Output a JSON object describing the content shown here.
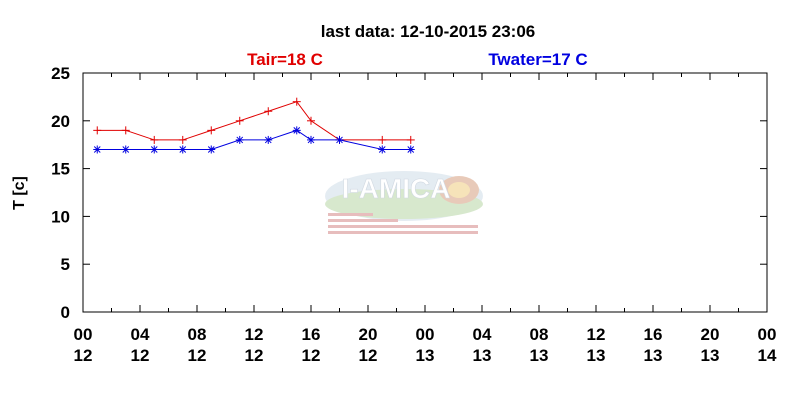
{
  "chart_data": {
    "type": "line",
    "title": "last data: 12-10-2015 23:06",
    "ylabel": "T [c]",
    "xlabel": "",
    "ylim": [
      0,
      25
    ],
    "yticks": [
      0,
      5,
      10,
      15,
      20,
      25
    ],
    "xlim_hours": [
      0,
      48
    ],
    "xticks": [
      {
        "h": 0,
        "line1": "00",
        "line2": "12"
      },
      {
        "h": 4,
        "line1": "04",
        "line2": "12"
      },
      {
        "h": 8,
        "line1": "08",
        "line2": "12"
      },
      {
        "h": 12,
        "line1": "12",
        "line2": "12"
      },
      {
        "h": 16,
        "line1": "16",
        "line2": "12"
      },
      {
        "h": 20,
        "line1": "20",
        "line2": "12"
      },
      {
        "h": 24,
        "line1": "00",
        "line2": "13"
      },
      {
        "h": 28,
        "line1": "04",
        "line2": "13"
      },
      {
        "h": 32,
        "line1": "08",
        "line2": "13"
      },
      {
        "h": 36,
        "line1": "12",
        "line2": "13"
      },
      {
        "h": 40,
        "line1": "16",
        "line2": "13"
      },
      {
        "h": 44,
        "line1": "20",
        "line2": "13"
      },
      {
        "h": 48,
        "line1": "00",
        "line2": "14"
      }
    ],
    "series": [
      {
        "name": "Tair=18 C",
        "color": "#e00000",
        "marker": "plus",
        "x": [
          1,
          3,
          5,
          7,
          9,
          11,
          13,
          15,
          16,
          18,
          21,
          23
        ],
        "y": [
          19,
          19,
          18,
          18,
          19,
          20,
          21,
          22,
          20,
          18,
          18,
          18
        ]
      },
      {
        "name": "Twater=17 C",
        "color": "#0000e0",
        "marker": "star",
        "x": [
          1,
          3,
          5,
          7,
          9,
          11,
          13,
          15,
          16,
          18,
          21,
          23
        ],
        "y": [
          17,
          17,
          17,
          17,
          17,
          18,
          18,
          19,
          18,
          18,
          17,
          17
        ]
      }
    ],
    "grid": false,
    "legend": "top"
  },
  "watermark": {
    "logo_text": "I-AMICA"
  }
}
